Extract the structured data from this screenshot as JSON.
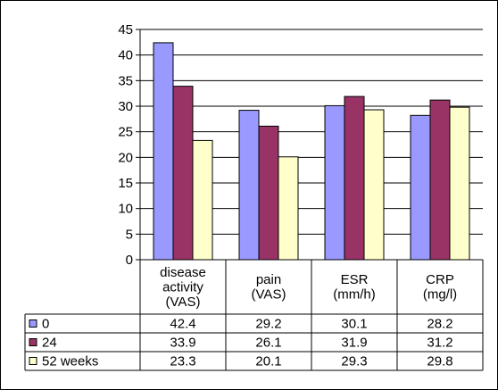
{
  "chart_data": {
    "type": "bar",
    "title": "",
    "xlabel": "",
    "ylabel": "",
    "ylim": [
      0,
      45
    ],
    "yticks": [
      0,
      5,
      10,
      15,
      20,
      25,
      30,
      35,
      40,
      45
    ],
    "grid": true,
    "legend": "data-table",
    "categories": [
      [
        "disease",
        "activity",
        "(VAS)"
      ],
      [
        "pain",
        "(VAS)"
      ],
      [
        "ESR",
        "(mm/h)"
      ],
      [
        "CRP",
        "(mg/l)"
      ]
    ],
    "series": [
      {
        "name": "0",
        "color": "#9999ff",
        "values": [
          42.4,
          29.2,
          30.1,
          28.2
        ]
      },
      {
        "name": "24",
        "color": "#993366",
        "values": [
          33.9,
          26.1,
          31.9,
          31.2
        ]
      },
      {
        "name": "52 weeks",
        "color": "#ffffcc",
        "values": [
          23.3,
          20.1,
          29.3,
          29.8
        ]
      }
    ]
  }
}
